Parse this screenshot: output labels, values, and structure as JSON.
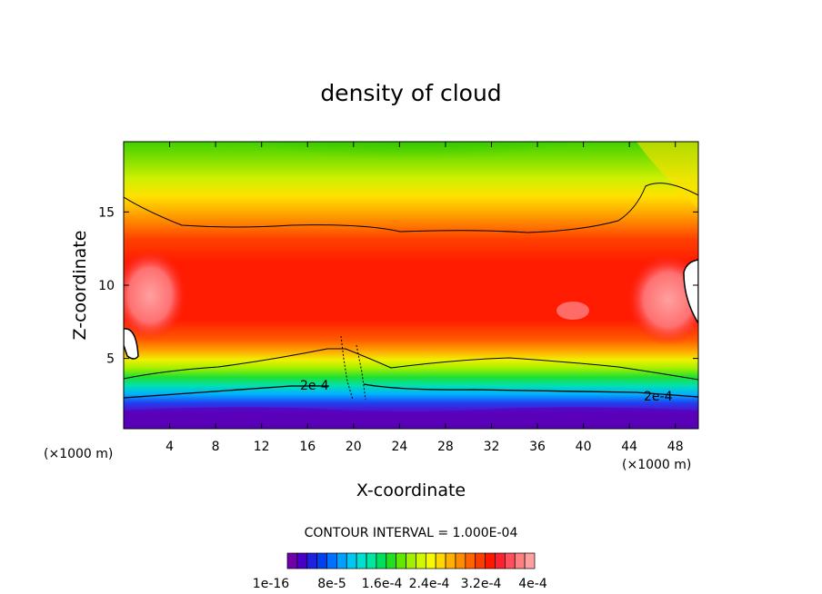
{
  "chart_data": {
    "type": "heatmap",
    "title": "density of cloud",
    "xlabel": "X-coordinate",
    "ylabel": "Z-coordinate",
    "x_unit_left": "(×1000 m)",
    "x_unit_right": "(×1000 m)",
    "xlim": [
      0,
      50
    ],
    "ylim": [
      0.2,
      19.8
    ],
    "x_ticks": [
      4,
      8,
      12,
      16,
      20,
      24,
      28,
      32,
      36,
      40,
      44,
      48
    ],
    "y_ticks": [
      5,
      10,
      15
    ],
    "contour_labels": [
      "2e-4",
      "2e-4"
    ],
    "contour_interval_text": "CONTOUR INTERVAL = 1.000E-04",
    "colorbar": {
      "min": 1e-16,
      "max": 0.00044,
      "labels": [
        "1e-16",
        "8e-5",
        "1.6e-4",
        "2.4e-4",
        "3.2e-4",
        "4e-4"
      ],
      "colors": [
        "#7000a8",
        "#4800c8",
        "#2020e0",
        "#0040f0",
        "#0070ff",
        "#00a0ff",
        "#00c8f0",
        "#00e0d0",
        "#00e8a0",
        "#00e060",
        "#20e020",
        "#60e800",
        "#a0f000",
        "#d0f800",
        "#f8f800",
        "#ffd800",
        "#ffb000",
        "#ff8c00",
        "#ff6400",
        "#ff3c00",
        "#ff1800",
        "#ff2030",
        "#ff5060",
        "#ff8080",
        "#ffa0a0"
      ]
    }
  }
}
